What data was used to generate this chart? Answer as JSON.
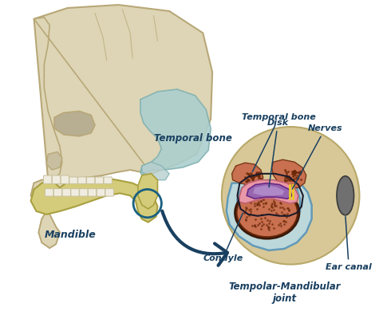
{
  "background_color": "#ffffff",
  "labels": {
    "temporal_bone_skull": "Temporal bone",
    "mandible": "Mandible",
    "temporal_bone_zoom": "Temporal bone",
    "disk": "Disk",
    "nerves": "Nerves",
    "condyle": "Condyle",
    "tmj": "Tempolar-Mandibular\njoint",
    "ear_canal": "Ear canal"
  },
  "colors": {
    "skull_fill": "#ddd5b5",
    "skull_edge": "#b8a878",
    "skull_shadow": "#c8bea0",
    "temporal_fill": "#aacfcf",
    "temporal_edge": "#80b0b0",
    "mandible_fill": "#d4cc7a",
    "mandible_edge": "#a8a040",
    "zoom_bg": "#d8c898",
    "condyle_fill": "#cc7750",
    "condyle_edge": "#7a3a10",
    "disk_fill": "#9060b0",
    "disk_edge": "#602080",
    "capsule_fill": "#e898a8",
    "capsule_edge": "#c06070",
    "fluid_fill": "#b8dce8",
    "fluid_edge": "#5090b8",
    "ear_canal_fill": "#707070",
    "label_color": "#1a4060",
    "arrow_color": "#1a4060",
    "circle_color": "#1a6080",
    "teeth_fill": "#f0ede0",
    "teeth_edge": "#c8c0a0"
  }
}
